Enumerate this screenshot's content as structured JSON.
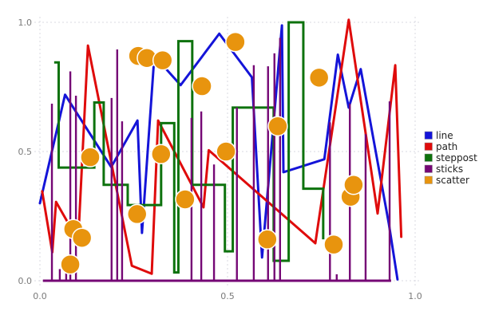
{
  "chart_data": {
    "type": "mixed",
    "title": "",
    "xlabel": "",
    "ylabel": "",
    "xlim": [
      0,
      1
    ],
    "ylim": [
      0,
      1
    ],
    "x_ticks": [
      {
        "value": 0.0,
        "label": "0.0"
      },
      {
        "value": 0.5,
        "label": "0.5"
      },
      {
        "value": 1.0,
        "label": "1.0"
      }
    ],
    "y_ticks": [
      {
        "value": 0.0,
        "label": "0.0"
      },
      {
        "value": 0.5,
        "label": "0.5"
      },
      {
        "value": 1.0,
        "label": "1.0"
      }
    ],
    "grid": true,
    "grid_style": "dashed",
    "legend_position": "right",
    "series": [
      {
        "name": "line",
        "type": "line",
        "color": "#1414d8",
        "points": [
          [
            0.0,
            0.3
          ],
          [
            0.067,
            0.72
          ],
          [
            0.19,
            0.44
          ],
          [
            0.26,
            0.62
          ],
          [
            0.272,
            0.185
          ],
          [
            0.305,
            0.87
          ],
          [
            0.375,
            0.757
          ],
          [
            0.478,
            0.956
          ],
          [
            0.565,
            0.787
          ],
          [
            0.592,
            0.09
          ],
          [
            0.645,
            0.988
          ],
          [
            0.649,
            0.42
          ],
          [
            0.758,
            0.47
          ],
          [
            0.794,
            0.875
          ],
          [
            0.823,
            0.67
          ],
          [
            0.855,
            0.819
          ],
          [
            0.93,
            0.22
          ],
          [
            0.953,
            0.005
          ]
        ]
      },
      {
        "name": "path",
        "type": "line",
        "color": "#df0b0b",
        "points": [
          [
            0.006,
            0.346
          ],
          [
            0.033,
            0.11
          ],
          [
            0.043,
            0.305
          ],
          [
            0.102,
            0.155
          ],
          [
            0.128,
            0.91
          ],
          [
            0.245,
            0.058
          ],
          [
            0.298,
            0.027
          ],
          [
            0.315,
            0.62
          ],
          [
            0.436,
            0.284
          ],
          [
            0.45,
            0.505
          ],
          [
            0.734,
            0.145
          ],
          [
            0.823,
            1.01
          ],
          [
            0.9,
            0.26
          ],
          [
            0.947,
            0.834
          ],
          [
            0.963,
            0.17
          ]
        ]
      },
      {
        "name": "steppost",
        "type": "step-post",
        "color": "#0d720d",
        "points": [
          [
            0.038,
            0.845
          ],
          [
            0.05,
            0.438
          ],
          [
            0.145,
            0.69
          ],
          [
            0.17,
            0.371
          ],
          [
            0.234,
            0.293
          ],
          [
            0.323,
            0.61
          ],
          [
            0.358,
            0.032
          ],
          [
            0.369,
            0.927
          ],
          [
            0.406,
            0.371
          ],
          [
            0.493,
            0.114
          ],
          [
            0.514,
            0.67
          ],
          [
            0.623,
            0.077
          ],
          [
            0.663,
            1.0
          ],
          [
            0.702,
            0.356
          ],
          [
            0.755,
            0.16
          ]
        ]
      },
      {
        "name": "sticks",
        "type": "sticks",
        "color": "#750775",
        "baseline_x": [
          0.008,
          0.936
        ],
        "points": [
          [
            0.032,
            0.685
          ],
          [
            0.053,
            0.045
          ],
          [
            0.07,
            0.045
          ],
          [
            0.081,
            0.81
          ],
          [
            0.096,
            0.716
          ],
          [
            0.191,
            0.707
          ],
          [
            0.206,
            0.895
          ],
          [
            0.219,
            0.617
          ],
          [
            0.404,
            0.63
          ],
          [
            0.43,
            0.655
          ],
          [
            0.464,
            0.45
          ],
          [
            0.525,
            0.67
          ],
          [
            0.57,
            0.834
          ],
          [
            0.608,
            0.83
          ],
          [
            0.625,
            0.88
          ],
          [
            0.64,
            0.94
          ],
          [
            0.773,
            0.613
          ],
          [
            0.791,
            0.025
          ],
          [
            0.826,
            0.685
          ],
          [
            0.868,
            0.567
          ],
          [
            0.932,
            0.694
          ]
        ]
      },
      {
        "name": "scatter",
        "type": "scatter",
        "color": "#e8940e",
        "edge_color": "#ffffff",
        "marker_radius_px": 12,
        "points": [
          [
            0.081,
            0.063
          ],
          [
            0.089,
            0.2
          ],
          [
            0.112,
            0.166
          ],
          [
            0.134,
            0.478
          ],
          [
            0.259,
            0.258
          ],
          [
            0.262,
            0.87
          ],
          [
            0.285,
            0.862
          ],
          [
            0.327,
            0.853
          ],
          [
            0.323,
            0.49
          ],
          [
            0.387,
            0.315
          ],
          [
            0.432,
            0.753
          ],
          [
            0.496,
            0.5
          ],
          [
            0.521,
            0.924
          ],
          [
            0.606,
            0.16
          ],
          [
            0.634,
            0.598
          ],
          [
            0.744,
            0.786
          ],
          [
            0.783,
            0.14
          ],
          [
            0.828,
            0.325
          ],
          [
            0.836,
            0.371
          ]
        ]
      }
    ],
    "legend_entries": [
      {
        "label": "line",
        "color": "#1414d8"
      },
      {
        "label": "path",
        "color": "#df0b0b"
      },
      {
        "label": "steppost",
        "color": "#0d720d"
      },
      {
        "label": "sticks",
        "color": "#750775"
      },
      {
        "label": "scatter",
        "color": "#e8940e"
      }
    ]
  },
  "colors": {
    "background": "#ffffff",
    "grid": "#d8d8e2",
    "tick_text": "#7a7a7a",
    "legend_text": "#1f1f1f"
  }
}
